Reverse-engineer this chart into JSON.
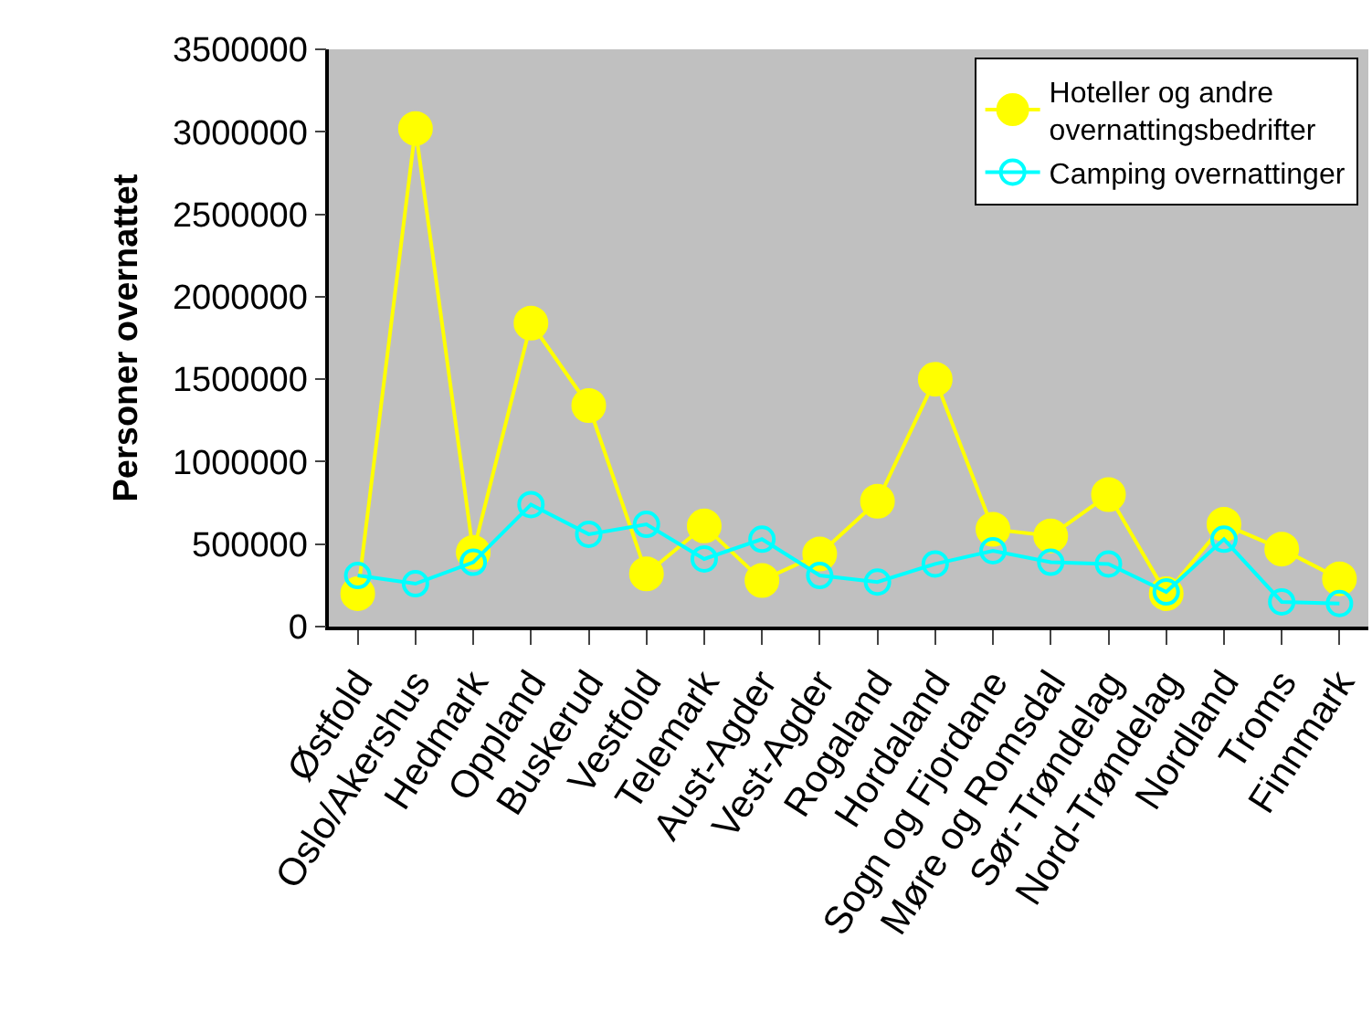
{
  "chart_data": {
    "type": "line",
    "ylabel": "Personer overnattet",
    "categories": [
      "Østfold",
      "Oslo/Akershus",
      "Hedmark",
      "Oppland",
      "Buskerud",
      "Vestfold",
      "Telemark",
      "Aust-Agder",
      "Vest-Agder",
      "Rogaland",
      "Hordaland",
      "Sogn og Fjordane",
      "Møre og Romsdal",
      "Sør-Trøndelag",
      "Nord-Trøndelag",
      "Nordland",
      "Troms",
      "Finnmark"
    ],
    "series": [
      {
        "name": "Hoteller og andre overnattingsbedrifter",
        "color": "#ffff00",
        "marker": "circle",
        "values": [
          200000,
          3020000,
          450000,
          1840000,
          1340000,
          320000,
          610000,
          280000,
          440000,
          760000,
          1500000,
          590000,
          550000,
          800000,
          200000,
          620000,
          470000,
          290000
        ]
      },
      {
        "name": "Camping overnattinger",
        "color": "#00ffff",
        "marker": "circle-open",
        "values": [
          310000,
          260000,
          390000,
          740000,
          560000,
          620000,
          410000,
          530000,
          310000,
          270000,
          380000,
          460000,
          390000,
          380000,
          210000,
          530000,
          150000,
          140000
        ]
      }
    ],
    "ylim": [
      0,
      3500000
    ],
    "yticks": [
      0,
      500000,
      1000000,
      1500000,
      2000000,
      2500000,
      3000000,
      3500000
    ],
    "grid": false,
    "legend": "top right"
  }
}
